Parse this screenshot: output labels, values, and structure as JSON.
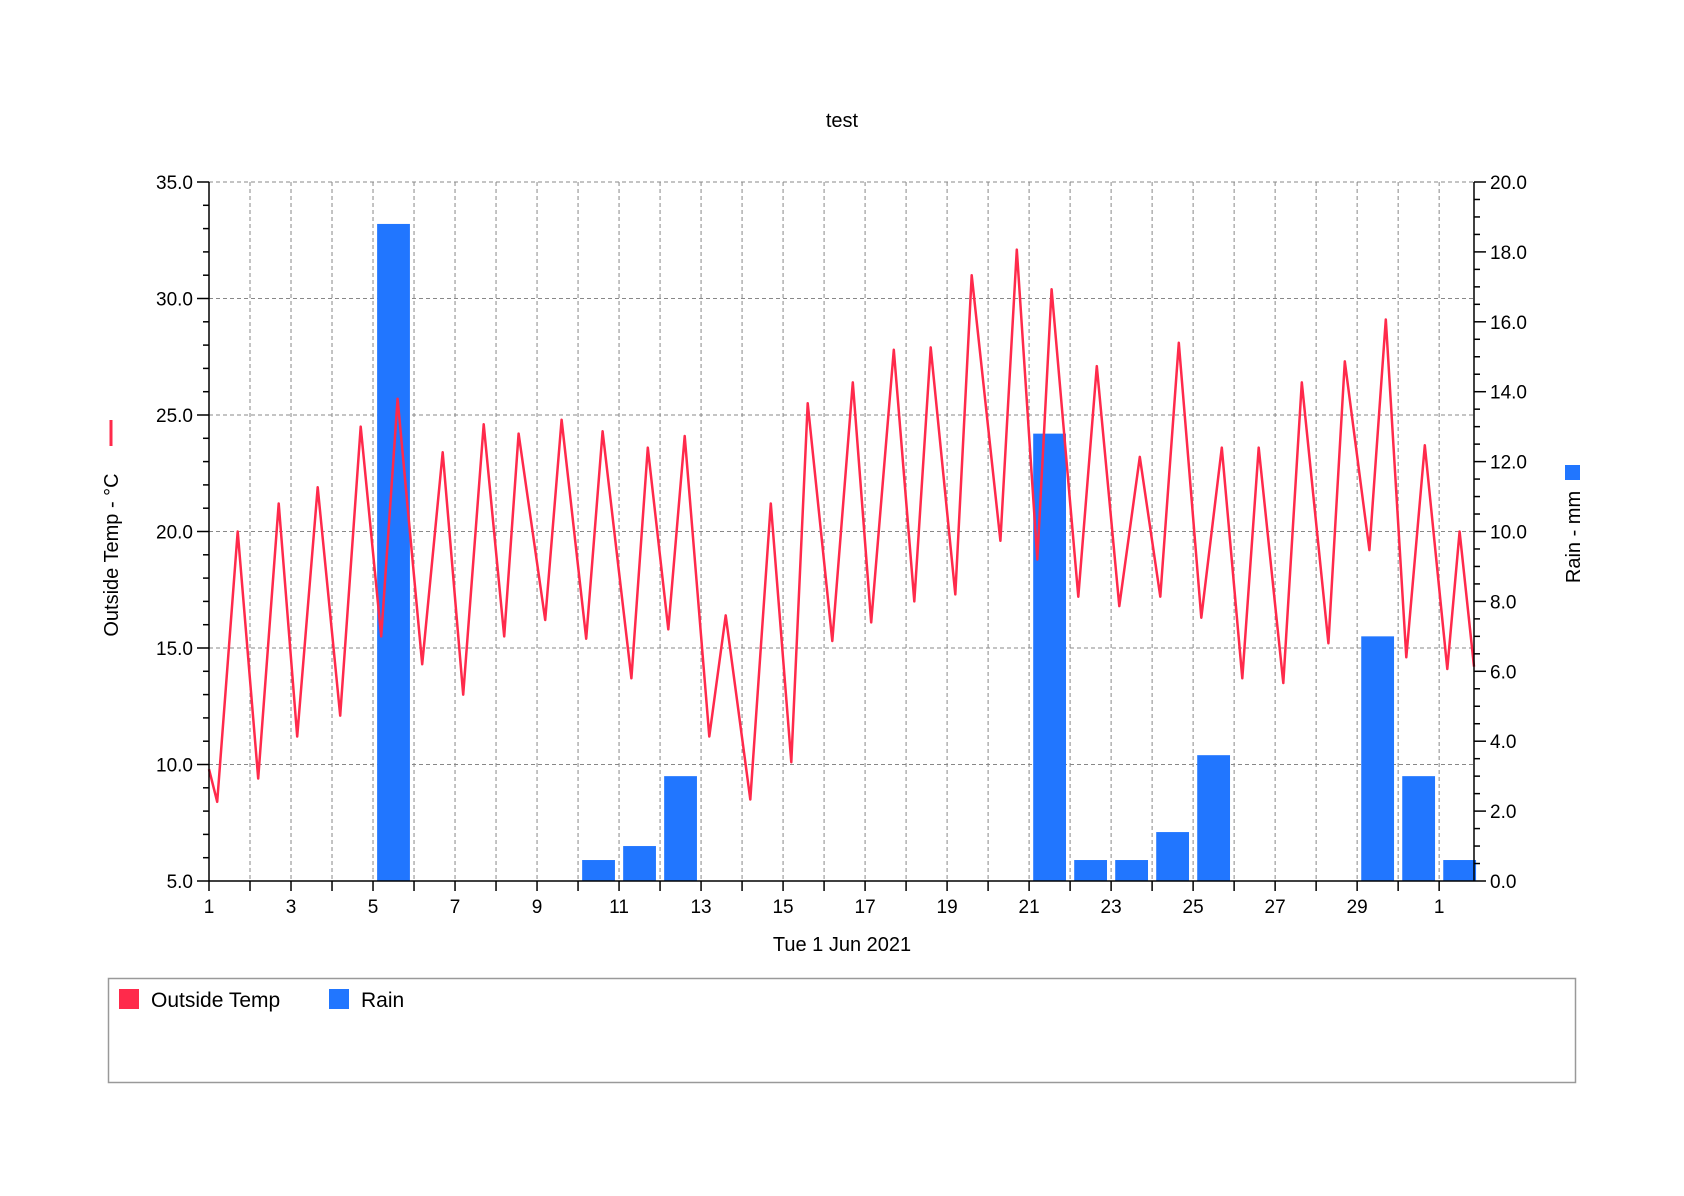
{
  "colors": {
    "temp": "#ff2a4b",
    "rain": "#2176ff",
    "grid": "#888888",
    "axis": "#000000"
  },
  "chart_data": {
    "type": "line+bar",
    "title": "test",
    "xlabel": "Tue 1 Jun 2021",
    "ylabel_left": "Outside Temp - °C",
    "ylabel_right": "Rain - mm",
    "xlim": [
      1,
      31.85
    ],
    "ylim_left": [
      5,
      35
    ],
    "ylim_right": [
      0,
      20
    ],
    "left_ticks": [
      "5.0",
      "10.0",
      "15.0",
      "20.0",
      "25.0",
      "30.0",
      "35.0"
    ],
    "right_ticks": [
      "0.0",
      "2.0",
      "4.0",
      "6.0",
      "8.0",
      "10.0",
      "12.0",
      "14.0",
      "16.0",
      "18.0",
      "20.0"
    ],
    "x_tick_labels": [
      "1",
      "3",
      "5",
      "7",
      "9",
      "11",
      "13",
      "15",
      "17",
      "19",
      "21",
      "23",
      "25",
      "27",
      "29",
      "1"
    ],
    "grid": true,
    "legend": {
      "placement": "bottom",
      "items": [
        "Outside Temp",
        "Rain"
      ]
    },
    "series": [
      {
        "name": "Outside Temp",
        "axis": "left",
        "type": "line",
        "x": [
          1.0,
          1.2,
          1.7,
          2.2,
          2.7,
          3.15,
          3.65,
          4.2,
          4.7,
          5.2,
          5.6,
          6.2,
          6.7,
          7.2,
          7.7,
          8.2,
          8.55,
          9.2,
          9.6,
          10.2,
          10.6,
          11.3,
          11.7,
          12.2,
          12.6,
          13.2,
          13.6,
          14.2,
          14.7,
          15.2,
          15.6,
          16.2,
          16.7,
          17.15,
          17.7,
          18.2,
          18.6,
          19.2,
          19.6,
          20.3,
          20.7,
          21.2,
          21.55,
          22.2,
          22.65,
          23.2,
          23.7,
          24.2,
          24.65,
          25.2,
          25.7,
          26.2,
          26.6,
          27.2,
          27.65,
          28.3,
          28.7,
          29.3,
          29.7,
          30.2,
          30.65,
          31.2,
          31.5,
          31.85
        ],
        "y": [
          9.8,
          8.4,
          20.0,
          9.4,
          21.2,
          11.2,
          21.9,
          12.1,
          24.5,
          15.5,
          25.7,
          14.3,
          23.4,
          13.0,
          24.6,
          15.5,
          24.2,
          16.2,
          24.8,
          15.4,
          24.3,
          13.7,
          23.6,
          15.8,
          24.1,
          11.2,
          16.4,
          8.5,
          21.2,
          10.1,
          25.5,
          15.3,
          26.4,
          16.1,
          27.8,
          17.0,
          27.9,
          17.3,
          31.0,
          19.6,
          32.1,
          18.8,
          30.4,
          17.2,
          27.1,
          16.8,
          23.2,
          17.2,
          28.1,
          16.3,
          23.6,
          13.7,
          23.6,
          13.5,
          26.4,
          15.2,
          27.3,
          19.2,
          29.1,
          14.6,
          23.7,
          14.1,
          20.0,
          14.2
        ]
      },
      {
        "name": "Rain",
        "axis": "right",
        "type": "bar",
        "x": [
          5,
          10,
          11,
          12,
          21,
          22,
          23,
          24,
          25,
          29,
          30,
          31
        ],
        "values": [
          18.8,
          0.6,
          1.0,
          3.0,
          12.8,
          0.6,
          0.6,
          1.4,
          3.6,
          7.0,
          3.0,
          0.6
        ]
      }
    ]
  }
}
